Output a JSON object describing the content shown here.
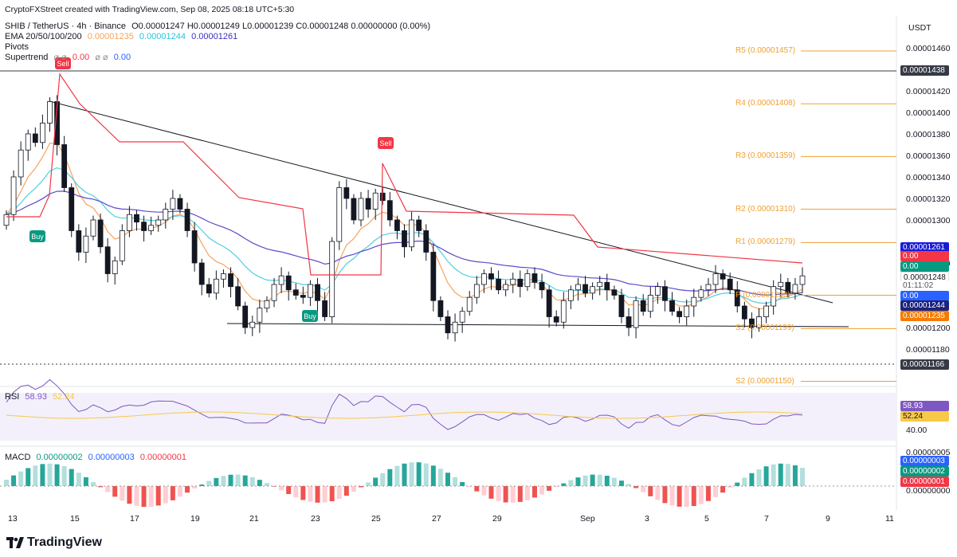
{
  "watermark": "CryptoFXStreet created with TradingView.com, Sep 08, 2025 08:18 UTC+5:30",
  "currency": "USDT",
  "legend": {
    "symbol": "SHIB / TetherUS · 4h · Binance",
    "ohlc": "O0.00001247  H0.00001249  L0.00001239  C0.00001248  0.00000000 (0.00%)",
    "ema_label": "EMA 20/50/100/200",
    "ema_vals": [
      "0.00001235",
      "0.00001244",
      "0.00001261"
    ],
    "pivots_label": "Pivots",
    "supertrend_label": "Supertrend",
    "supertrend_vals": [
      "0.00",
      "0.00"
    ]
  },
  "price_axis": [
    "0.00001460",
    "0.00001420",
    "0.00001400",
    "0.00001380",
    "0.00001360",
    "0.00001340",
    "0.00001320",
    "0.00001300",
    "0.00001260",
    "0.00001200",
    "0.00001180"
  ],
  "badges": {
    "high_line": "0.00001438",
    "ema200": "0.00001261",
    "st1": "0.00",
    "st2": "0.00",
    "last": "0.00001248",
    "countdown": "01:11:02",
    "st3": "0.00",
    "ema50": "0.00001244",
    "ema20": "0.00001235",
    "low_line": "0.00001166"
  },
  "pivots": [
    {
      "name": "R5",
      "value": "0.00001457",
      "label": "R5 (0.00001457)"
    },
    {
      "name": "R4",
      "value": "0.00001408",
      "label": "R4 (0.00001408)"
    },
    {
      "name": "R3",
      "value": "0.00001359",
      "label": "R3 (0.00001359)"
    },
    {
      "name": "R2",
      "value": "0.00001310",
      "label": "R2 (0.00001310)"
    },
    {
      "name": "R1",
      "value": "0.00001279",
      "label": "R1 (0.00001279)"
    },
    {
      "name": "P",
      "value": "0.00001230",
      "label": "P (0.00001230)"
    },
    {
      "name": "S1",
      "value": "0.00001199",
      "label": "S1 (0.00001199)"
    },
    {
      "name": "S2",
      "value": "0.00001150",
      "label": "S2 (0.00001150)"
    }
  ],
  "signals": [
    {
      "text": "Sell",
      "type": "sell"
    },
    {
      "text": "Buy",
      "type": "buy"
    },
    {
      "text": "Buy",
      "type": "buy"
    },
    {
      "text": "Sell",
      "type": "sell"
    }
  ],
  "rsi": {
    "label": "RSI",
    "v1": "58.93",
    "v2": "52.24",
    "axis": "40.00"
  },
  "macd": {
    "label": "MACD",
    "v1": "0.00000002",
    "v2": "0.00000003",
    "v3": "0.00000001",
    "axis": [
      "0.00000005",
      "0.00000000"
    ],
    "badges": [
      "0.00000003",
      "0.00000002",
      "0.00000001"
    ]
  },
  "x_axis": [
    "13",
    "15",
    "17",
    "19",
    "21",
    "23",
    "25",
    "27",
    "29",
    "Sep",
    "3",
    "5",
    "7",
    "9",
    "11"
  ],
  "brand": "TradingView",
  "colors": {
    "up": "#089981",
    "down": "#f23645",
    "ema20": "#f7a35c",
    "ema50": "#4dd0e1",
    "ema200": "#5c4bc9",
    "pivot": "#f0a030",
    "st_down": "#f23645",
    "st_up": "#089981"
  },
  "chart_data": {
    "type": "candlestick",
    "title": "SHIB / TetherUS · 4h · Binance",
    "ylim": [
      1.14e-05,
      1.47e-05
    ],
    "close_series": [
      1.305e-05,
      1.34e-05,
      1.365e-05,
      1.38e-05,
      1.372e-05,
      1.39e-05,
      1.41e-05,
      1.37e-05,
      1.33e-05,
      1.29e-05,
      1.27e-05,
      1.285e-05,
      1.3e-05,
      1.275e-05,
      1.25e-05,
      1.262e-05,
      1.29e-05,
      1.305e-05,
      1.298e-05,
      1.29e-05,
      1.295e-05,
      1.3e-05,
      1.31e-05,
      1.32e-05,
      1.31e-05,
      1.29e-05,
      1.26e-05,
      1.24e-05,
      1.232e-05,
      1.245e-05,
      1.25e-05,
      1.238e-05,
      1.22e-05,
      1.2e-05,
      1.205e-05,
      1.218e-05,
      1.225e-05,
      1.24e-05,
      1.248e-05,
      1.235e-05,
      1.23e-05,
      1.228e-05,
      1.24e-05,
      1.225e-05,
      1.21e-05,
      1.28e-05,
      1.33e-05,
      1.32e-05,
      1.3e-05,
      1.32e-05,
      1.31e-05,
      1.325e-05,
      1.318e-05,
      1.3e-05,
      1.29e-05,
      1.275e-05,
      1.3e-05,
      1.29e-05,
      1.27e-05,
      1.225e-05,
      1.21e-05,
      1.195e-05,
      1.205e-05,
      1.215e-05,
      1.228e-05,
      1.24e-05,
      1.25e-05,
      1.245e-05,
      1.235e-05,
      1.24e-05,
      1.245e-05,
      1.238e-05,
      1.25e-05,
      1.242e-05,
      1.235e-05,
      1.21e-05,
      1.205e-05,
      1.225e-05,
      1.235e-05,
      1.24e-05,
      1.232e-05,
      1.238e-05,
      1.242e-05,
      1.235e-05,
      1.23e-05,
      1.21e-05,
      1.2e-05,
      1.225e-05,
      1.215e-05,
      1.23e-05,
      1.238e-05,
      1.225e-05,
      1.215e-05,
      1.21e-05,
      1.22e-05,
      1.228e-05,
      1.235e-05,
      1.24e-05,
      1.25e-05,
      1.245e-05,
      1.235e-05,
      1.22e-05,
      1.208e-05,
      1.2e-05,
      1.21e-05,
      1.22e-05,
      1.238e-05,
      1.242e-05,
      1.232e-05,
      1.24e-05,
      1.248e-05
    ]
  }
}
